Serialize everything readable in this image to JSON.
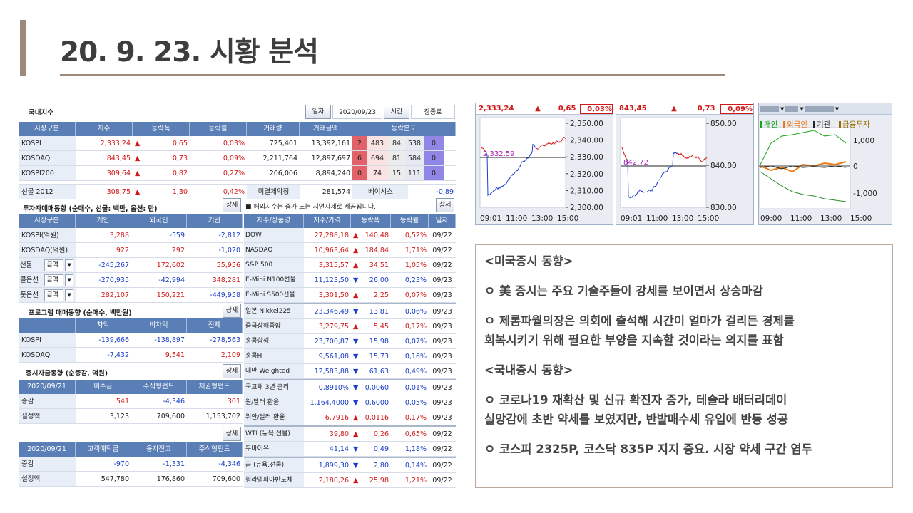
{
  "title": "20. 9. 23. 시황 분석",
  "domestic": {
    "title": "국내지수",
    "date_label": "일자",
    "date": "2020/09/23",
    "time_label": "시간",
    "time": "장종료",
    "headers": [
      "시장구분",
      "지수",
      "등락폭",
      "등락률",
      "거래량",
      "거래금액",
      "등락분포"
    ],
    "rows": [
      {
        "name": "KOSPI",
        "index": "2,333,24",
        "chg": "0,65",
        "pct": "0,03%",
        "vol": "725,401",
        "amt": "13,392,161",
        "d": [
          "2",
          "483",
          "84",
          "538",
          "0"
        ]
      },
      {
        "name": "KOSDAQ",
        "index": "843,45",
        "chg": "0,73",
        "pct": "0,09%",
        "vol": "2,211,764",
        "amt": "12,897,697",
        "d": [
          "6",
          "694",
          "81",
          "584",
          "0"
        ]
      },
      {
        "name": "KOSPI200",
        "index": "309,64",
        "chg": "0,82",
        "pct": "0,27%",
        "vol": "206,006",
        "amt": "8,894,240",
        "d": [
          "0",
          "74",
          "15",
          "111",
          "0"
        ]
      }
    ],
    "futures": {
      "name": "선물 2012",
      "index": "308,75",
      "chg": "1,30",
      "pct": "0,42%",
      "oi_label": "미결제약정",
      "oi": "281,574",
      "basis_label": "베이시스",
      "basis": "-0,89"
    }
  },
  "investor": {
    "title": "투자자매매동향 (순매수, 선물: 백만, 옵션: 만)",
    "btn": "상세",
    "headers": [
      "시장구분",
      "개인",
      "외국인",
      "기관"
    ],
    "rows": [
      {
        "name": "KOSPI(억원)",
        "a": "3,288",
        "b": "-559",
        "c": "-2,812"
      },
      {
        "name": "KOSDAQ(억원)",
        "a": "922",
        "b": "292",
        "c": "-1,020"
      },
      {
        "name": "선물",
        "sel": "금액",
        "a": "-245,267",
        "b": "172,602",
        "c": "55,956"
      },
      {
        "name": "콜옵션",
        "sel": "금액",
        "a": "-270,935",
        "b": "-42,994",
        "c": "348,281"
      },
      {
        "name": "풋옵션",
        "sel": "금액",
        "a": "282,107",
        "b": "150,221",
        "c": "-449,958"
      }
    ]
  },
  "program": {
    "title": "프로그램 매매동향 (순매수, 백만원)",
    "btn": "상세",
    "headers": [
      "",
      "차익",
      "비차익",
      "전체"
    ],
    "rows": [
      {
        "name": "KOSPI",
        "a": "-139,666",
        "b": "-138,897",
        "c": "-278,563"
      },
      {
        "name": "KOSDAQ",
        "a": "-7,432",
        "b": "9,541",
        "c": "2,109"
      }
    ]
  },
  "funds": {
    "title": "증시자금동향 (순증감, 억원)",
    "btn": "상세",
    "headers": [
      "2020/09/21",
      "미수금",
      "주식형펀드",
      "채권형펀드"
    ],
    "rows": [
      {
        "name": "증감",
        "a": "541",
        "b": "-4,346",
        "c": "301"
      },
      {
        "name": "설정액",
        "a": "3,123",
        "b": "709,600",
        "c": "1,153,702"
      }
    ],
    "btn2": "상세",
    "headers2": [
      "2020/09/21",
      "고객예탁금",
      "융자잔고",
      "주식형펀드"
    ],
    "rows2": [
      {
        "name": "증감",
        "a": "-970",
        "b": "-1,331",
        "c": "-4,346"
      },
      {
        "name": "설정액",
        "a": "547,780",
        "b": "176,860",
        "c": "709,600"
      }
    ]
  },
  "overseas": {
    "note": "■ 해외지수는 증가 또는 지연시세로 제공됩니다.",
    "btn": "상세",
    "headers": [
      "지수/상품명",
      "지수/가격",
      "등락폭",
      "등락률",
      "일자"
    ],
    "rows": [
      {
        "name": "DOW",
        "price": "27,288,18",
        "dir": "up",
        "chg": "140,48",
        "pct": "0,52%",
        "date": "09/22"
      },
      {
        "name": "NASDAQ",
        "price": "10,963,64",
        "dir": "up",
        "chg": "184,84",
        "pct": "1,71%",
        "date": "09/22"
      },
      {
        "name": "S&P 500",
        "price": "3,315,57",
        "dir": "up",
        "chg": "34,51",
        "pct": "1,05%",
        "date": "09/22"
      },
      {
        "name": "E-Mini N100선물",
        "price": "11,123,50",
        "dir": "down",
        "chg": "26,00",
        "pct": "0,23%",
        "date": "09/23"
      },
      {
        "name": "E-Mini S500선물",
        "price": "3,301,50",
        "dir": "up",
        "chg": "2,25",
        "pct": "0,07%",
        "date": "09/23"
      },
      {
        "name": "일본 Nikkei225",
        "price": "23,346,49",
        "dir": "down",
        "chg": "13,81",
        "pct": "0,06%",
        "date": "09/23"
      },
      {
        "name": "중국상해종합",
        "price": "3,279,75",
        "dir": "up",
        "chg": "5,45",
        "pct": "0,17%",
        "date": "09/23"
      },
      {
        "name": "홍콩항셍",
        "price": "23,700,87",
        "dir": "down",
        "chg": "15,98",
        "pct": "0,07%",
        "date": "09/23"
      },
      {
        "name": "홍콩H",
        "price": "9,561,08",
        "dir": "down",
        "chg": "15,73",
        "pct": "0,16%",
        "date": "09/23"
      },
      {
        "name": "대만 Weighted",
        "price": "12,583,88",
        "dir": "down",
        "chg": "61,63",
        "pct": "0,49%",
        "date": "09/23"
      },
      {
        "name": "국고채 3년 금리",
        "price": "0,8910%",
        "dir": "down",
        "chg": "0,0060",
        "pct": "0,01%",
        "date": "09/23"
      },
      {
        "name": "원/달러 환율",
        "price": "1,164,4000",
        "dir": "down",
        "chg": "0,6000",
        "pct": "0,05%",
        "date": "09/23"
      },
      {
        "name": "위안/달러 환율",
        "price": "6,7916",
        "dir": "up",
        "chg": "0,0116",
        "pct": "0,17%",
        "date": "09/23"
      },
      {
        "name": "WTI (뉴욕,선물)",
        "price": "39,80",
        "dir": "up",
        "chg": "0,26",
        "pct": "0,65%",
        "date": "09/22"
      },
      {
        "name": "두바이유",
        "price": "41,14",
        "dir": "down",
        "chg": "0,49",
        "pct": "1,18%",
        "date": "09/22"
      },
      {
        "name": "금 (뉴욕,선물)",
        "price": "1,899,30",
        "dir": "down",
        "chg": "2,80",
        "pct": "0,14%",
        "date": "09/22"
      },
      {
        "name": "필라델피아반도체",
        "price": "2,180,26",
        "dir": "up",
        "chg": "25,98",
        "pct": "1,21%",
        "date": "09/22"
      }
    ]
  },
  "mini_charts": [
    {
      "value": "2,333,24",
      "chg": "0,65",
      "pct": "0,03%",
      "ref": "2,332.59",
      "yticks": [
        "2,350.00",
        "2,340.00",
        "2,330.00",
        "2,320.00",
        "2,310.00",
        "2,300.00"
      ],
      "xticks": [
        "09:01",
        "11:00",
        "13:00",
        "15:00"
      ]
    },
    {
      "value": "843,45",
      "chg": "0,73",
      "pct": "0,09%",
      "ref": "842.72",
      "yticks": [
        "850.00",
        "840.00",
        "830.00"
      ],
      "xticks": [
        "09:01",
        "11:00",
        "13:00",
        "15:00"
      ]
    },
    {
      "legend": [
        "개인",
        "외국인",
        "기관",
        "금융투자"
      ],
      "yticks": [
        "1,000",
        "0",
        "-1,000"
      ],
      "xticks": [
        "09:00",
        "11:00",
        "13:00",
        "15:00"
      ]
    }
  ],
  "colors": {
    "up": "#d21919",
    "down": "#1a3fc8",
    "header": "#5a7eb6",
    "accent": "#9e8a7c"
  },
  "summary": {
    "us_title": "<미국증시 동향>",
    "us_1": "ㅇ 美 증시는 주요 기술주들이 강세를 보이면서 상승마감",
    "us_2a": "ㅇ 제롬파월의장은 의회에 출석해 시간이 얼마가 걸리든 경제를",
    "us_2b": "회복시키기 위해 필요한 부양을 지속할 것이라는 의지를 표함",
    "kr_title": "<국내증시 동향>",
    "kr_1a": "ㅇ 코로나19 재확산 및 신규 확진자 증가, 테슬라 배터리데이",
    "kr_1b": "실망감에 초반 약세를 보였지만, 반발매수세 유입에 반등 성공",
    "kr_2": "ㅇ 코스피 2325P, 코스닥 835P 지지 중요. 시장 약세 구간 염두"
  }
}
